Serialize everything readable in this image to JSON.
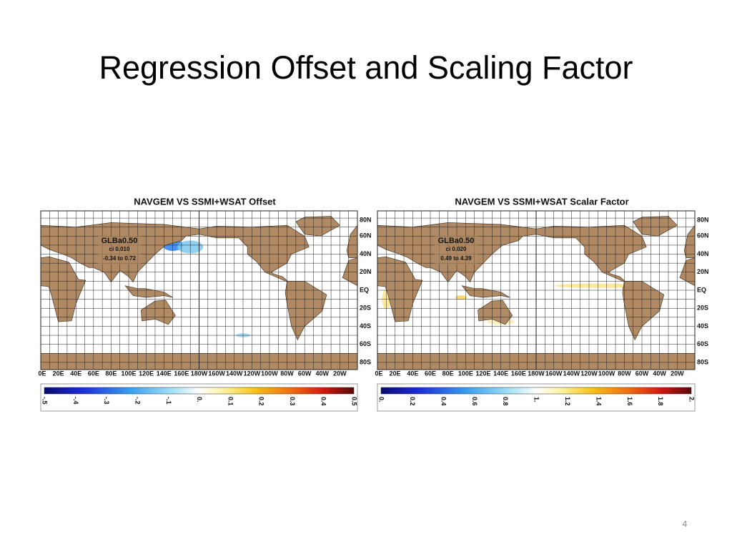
{
  "slide": {
    "title": "Regression Offset and Scaling Factor",
    "page_number": "4"
  },
  "panels": [
    {
      "title": "NAVGEM VS SSMI+WSAT Offset",
      "info": [
        "GLBa0.50",
        "ci 0.010",
        "-0.34 to 0.72"
      ],
      "lat_labels": [
        "80N",
        "60N",
        "40N",
        "20N",
        "EQ",
        "20S",
        "40S",
        "60S",
        "80S"
      ],
      "lon_labels": [
        "0E",
        "20E",
        "40E",
        "60E",
        "80E",
        "100E",
        "120E",
        "140E",
        "160E",
        "180W",
        "160W",
        "140W",
        "120W",
        "100W",
        "80W",
        "60W",
        "40W",
        "20W"
      ],
      "colorbar_labels": [
        "-.5",
        "-.4",
        "-.3",
        "-.2",
        "-.1",
        "0.",
        "0.1",
        "0.2",
        "0.3",
        "0.4",
        "0.5"
      ]
    },
    {
      "title": "NAVGEM VS SSMI+WSAT Scalar Factor",
      "info": [
        "GLBa0.50",
        "ci 0.020",
        "0.49 to 4.39"
      ],
      "lat_labels": [
        "80N",
        "60N",
        "40N",
        "20N",
        "EQ",
        "20S",
        "40S",
        "60S",
        "80S"
      ],
      "lon_labels": [
        "0E",
        "20E",
        "40E",
        "60E",
        "80E",
        "100E",
        "120E",
        "140E",
        "160E",
        "180W",
        "160W",
        "140W",
        "120W",
        "100W",
        "80W",
        "60W",
        "40W",
        "20W"
      ],
      "colorbar_labels": [
        "0.",
        "0.2",
        "0.4",
        "0.6",
        "0.8",
        "1.",
        "1.2",
        "1.4",
        "1.6",
        "1.8",
        "2."
      ]
    }
  ]
}
